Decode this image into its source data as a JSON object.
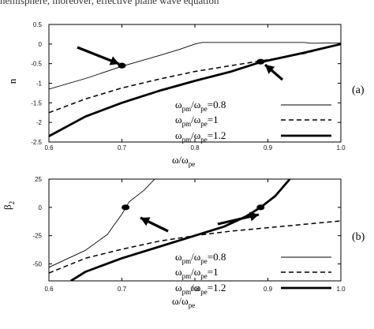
{
  "header_fragment": "hemisphere, moreover, effective plane wave equation",
  "chart_data": [
    {
      "type": "line",
      "panel_label": "(a)",
      "ylabel": "n",
      "xlabel_main": "ω/ω",
      "xlabel_sub": "pe",
      "xlim": [
        0.6,
        1.0
      ],
      "ylim": [
        -2.5,
        0.5
      ],
      "xticks": [
        "0.6",
        "0.7",
        "0.8",
        "0.9",
        "1.0"
      ],
      "yticks": [
        "0.5",
        "0",
        "-0.5",
        "-1",
        "-1.5",
        "-2",
        "-2.5"
      ],
      "legend": [
        {
          "main": "ω",
          "sub1": "pm",
          "mid": "/ω",
          "sub2": "pe",
          "tail": "=0.8"
        },
        {
          "main": "ω",
          "sub1": "pm",
          "mid": "/ω",
          "sub2": "pe",
          "tail": "=1"
        },
        {
          "main": "ω",
          "sub1": "pm",
          "mid": "/ω",
          "sub2": "pe",
          "tail": "=1.2"
        }
      ],
      "series": [
        {
          "style": "thin",
          "points": [
            [
              0.6,
              -1.15
            ],
            [
              0.65,
              -0.88
            ],
            [
              0.7,
              -0.57
            ],
            [
              0.75,
              -0.3
            ],
            [
              0.78,
              -0.13
            ],
            [
              0.8,
              0.0
            ],
            [
              0.81,
              0.04
            ],
            [
              0.9,
              0.04
            ],
            [
              0.93,
              0.04
            ],
            [
              0.95,
              0.04
            ],
            [
              0.96,
              0.02
            ],
            [
              1.0,
              0.03
            ]
          ]
        },
        {
          "style": "dashed",
          "points": [
            [
              0.6,
              -1.75
            ],
            [
              0.65,
              -1.4
            ],
            [
              0.7,
              -1.12
            ],
            [
              0.75,
              -0.9
            ],
            [
              0.8,
              -0.7
            ],
            [
              0.85,
              -0.55
            ],
            [
              0.9,
              -0.4
            ],
            [
              0.95,
              -0.24
            ],
            [
              1.0,
              0.0
            ]
          ]
        },
        {
          "style": "thick",
          "points": [
            [
              0.6,
              -2.35
            ],
            [
              0.65,
              -1.85
            ],
            [
              0.7,
              -1.5
            ],
            [
              0.75,
              -1.2
            ],
            [
              0.8,
              -0.94
            ],
            [
              0.85,
              -0.7
            ],
            [
              0.89,
              -0.46
            ],
            [
              0.95,
              -0.22
            ],
            [
              1.0,
              0.0
            ]
          ]
        }
      ],
      "markers": [
        [
          0.7,
          -0.55
        ],
        [
          0.89,
          -0.45
        ]
      ]
    },
    {
      "type": "line",
      "panel_label": "(b)",
      "ylabel_main": "β",
      "ylabel_sub": "2",
      "xlabel_main": "ω/ω",
      "xlabel_sub": "pe",
      "xlim": [
        0.6,
        1.0
      ],
      "ylim": [
        -65,
        25
      ],
      "xticks": [
        "0.6",
        "0.7",
        "0.8",
        "0.9",
        "1.0"
      ],
      "yticks": [
        "25",
        "0",
        "-25",
        "-50"
      ],
      "legend": [
        {
          "main": "ω",
          "sub1": "pm",
          "mid": "/ω",
          "sub2": "pe",
          "tail": "=0.8"
        },
        {
          "main": "ω",
          "sub1": "pm",
          "mid": "/ω",
          "sub2": "pe",
          "tail": "=1"
        },
        {
          "main": "ω",
          "sub1": "pm",
          "mid": "/ω",
          "sub2": "pe",
          "tail": "=1.2"
        }
      ],
      "series": [
        {
          "style": "thin",
          "points": [
            [
              0.6,
              -53
            ],
            [
              0.65,
              -38
            ],
            [
              0.68,
              -24
            ],
            [
              0.7,
              -6
            ],
            [
              0.71,
              5
            ],
            [
              0.73,
              15
            ],
            [
              0.745,
              25
            ]
          ]
        },
        {
          "style": "dashed",
          "points": [
            [
              0.6,
              -58
            ],
            [
              0.65,
              -45
            ],
            [
              0.7,
              -37
            ],
            [
              0.75,
              -30
            ],
            [
              0.8,
              -25
            ],
            [
              0.85,
              -21
            ],
            [
              0.9,
              -18
            ],
            [
              0.95,
              -15
            ],
            [
              1.0,
              -12
            ]
          ]
        },
        {
          "style": "thick",
          "points": [
            [
              0.63,
              -65
            ],
            [
              0.65,
              -57
            ],
            [
              0.7,
              -45
            ],
            [
              0.75,
              -35
            ],
            [
              0.8,
              -25
            ],
            [
              0.84,
              -17
            ],
            [
              0.87,
              -8
            ],
            [
              0.89,
              0
            ],
            [
              0.91,
              10
            ],
            [
              0.93,
              25
            ]
          ]
        }
      ],
      "markers": [
        [
          0.705,
          0
        ],
        [
          0.89,
          0
        ]
      ]
    }
  ]
}
